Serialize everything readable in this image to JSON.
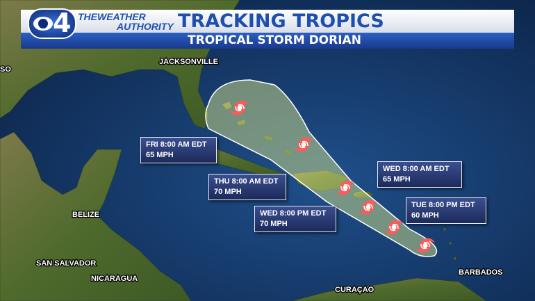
{
  "header": {
    "logo": "4",
    "brand": [
      "THEWEATHER",
      "AUTHORITY"
    ],
    "title": "TRACKING TROPICS",
    "subtitle": "TROPICAL STORM DORIAN"
  },
  "map": {
    "places": [
      "SO",
      "JACKSONVILLE",
      "BELIZE",
      "SAN SALVADOR",
      "NICARAGUA",
      "CURAÇAO",
      "BARBADOS"
    ]
  },
  "forecast_points": [
    {
      "time": "FRI 8:00 AM EDT",
      "wind": "65 MPH"
    },
    {
      "time": "THU 8:00 AM EDT",
      "wind": "70 MPH"
    },
    {
      "time": "WED 8:00 PM EDT",
      "wind": "70 MPH"
    },
    {
      "time": "WED 8:00 AM EDT",
      "wind": "65 MPH"
    },
    {
      "time": "TUE 8:00 PM EDT",
      "wind": "60 MPH"
    }
  ]
}
